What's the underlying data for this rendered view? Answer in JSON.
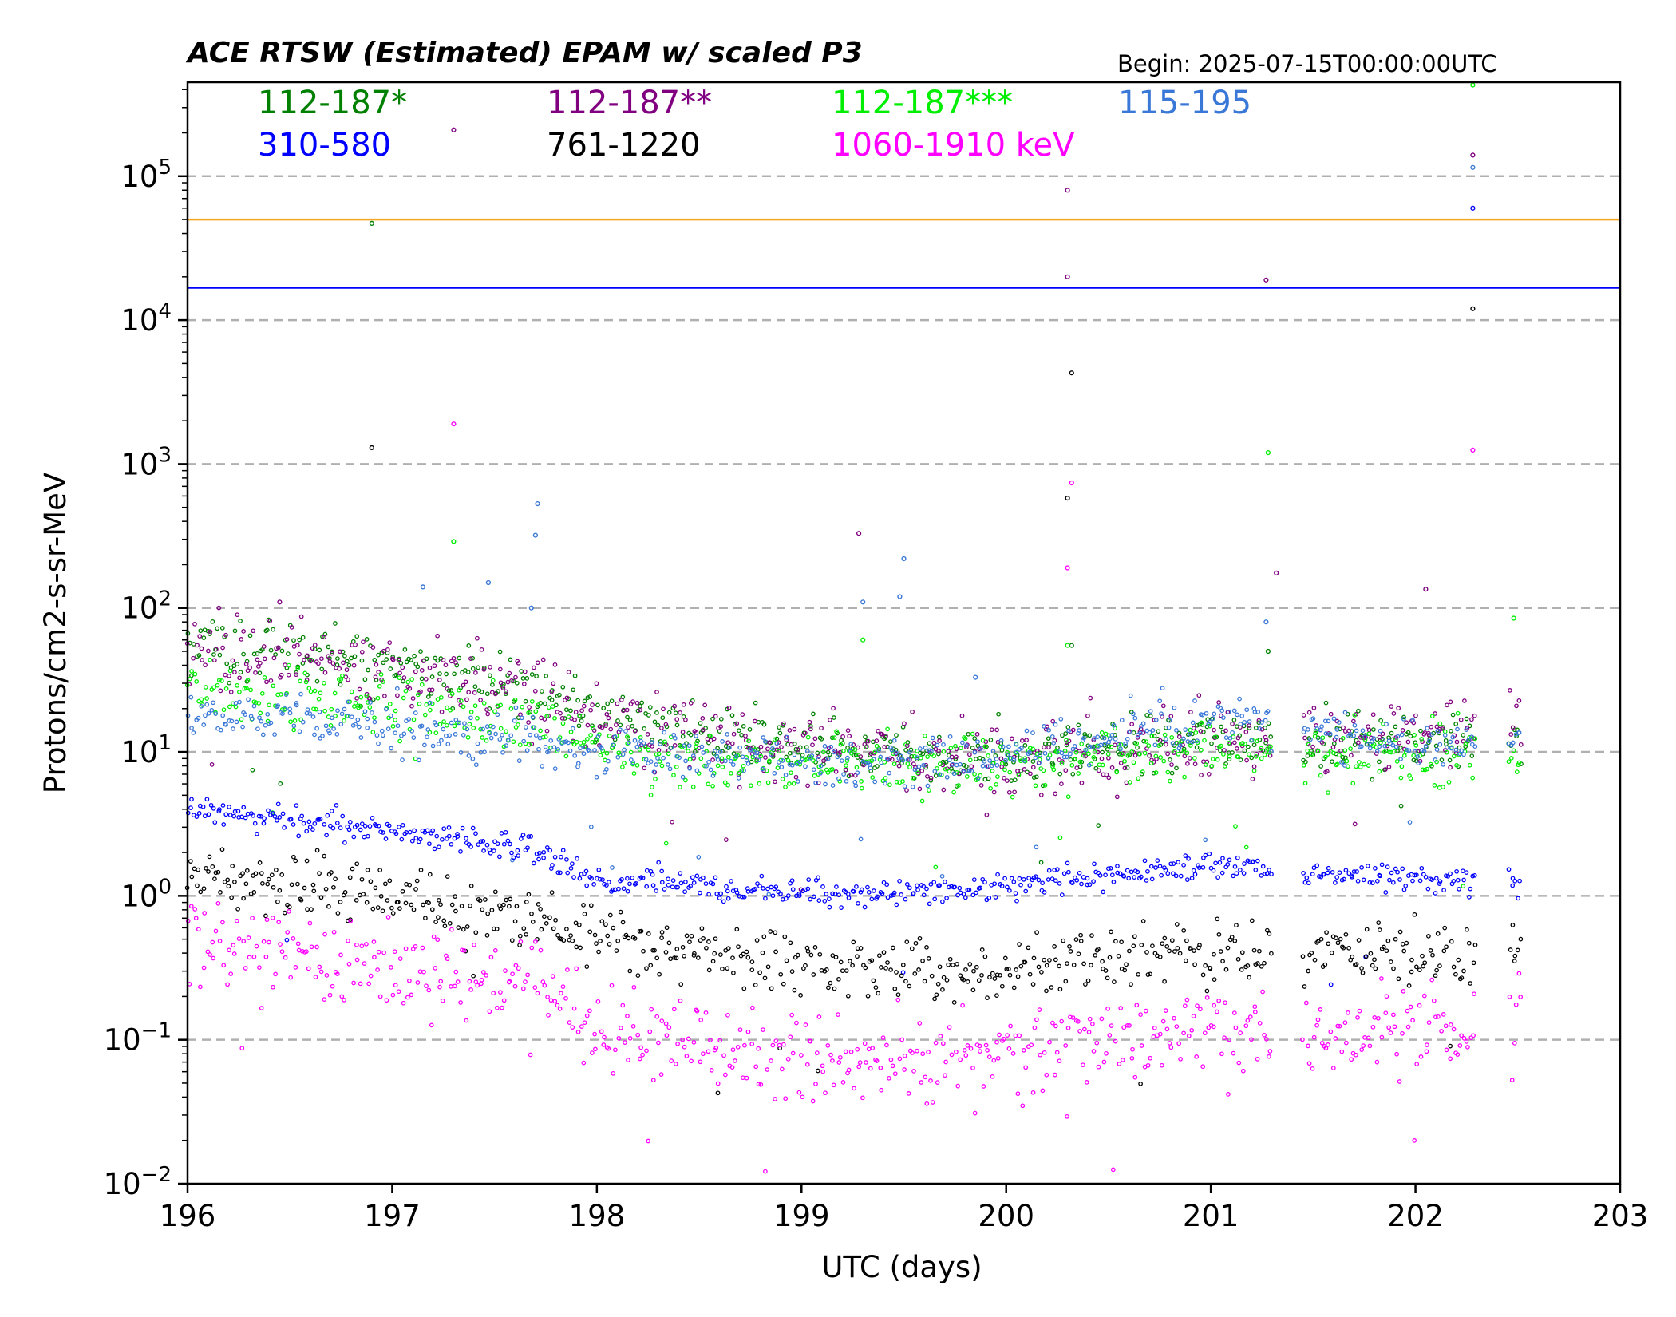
{
  "chart_data": {
    "type": "scatter",
    "title": "ACE RTSW (Estimated) EPAM w/ scaled P3",
    "begin_label": "Begin: 2025-07-15T00:00:00UTC",
    "xlabel": "UTC (days)",
    "ylabel": "Protons/cm2-s-sr-MeV",
    "xlim": [
      196,
      203
    ],
    "ylim": [
      0.01,
      450000
    ],
    "y_scale": "log",
    "grid": "horizontal dashed at decades",
    "x_ticks": [
      "196",
      "197",
      "198",
      "199",
      "200",
      "201",
      "202",
      "203"
    ],
    "y_ticks": [
      {
        "base": "10",
        "exp": "5",
        "value": 100000
      },
      {
        "base": "10",
        "exp": "4",
        "value": 10000
      },
      {
        "base": "10",
        "exp": "3",
        "value": 1000
      },
      {
        "base": "10",
        "exp": "2",
        "value": 100
      },
      {
        "base": "10",
        "exp": "1",
        "value": 10
      },
      {
        "base": "10",
        "exp": "0",
        "value": 1
      },
      {
        "base": "10",
        "exp": "−1",
        "value": 0.1
      },
      {
        "base": "10",
        "exp": "−2",
        "value": 0.01
      }
    ],
    "threshold_lines": [
      {
        "value": 50000,
        "color": "#f5a623"
      },
      {
        "value": 16800,
        "color": "#0000ff"
      }
    ],
    "legend_placement": "top, inside plot, 4 columns",
    "series": [
      {
        "name": "112-187*",
        "color": "#008000",
        "trend": [
          [
            196.0,
            55
          ],
          [
            197.0,
            40
          ],
          [
            197.7,
            28
          ],
          [
            198.0,
            18
          ],
          [
            198.7,
            12
          ],
          [
            199.3,
            10
          ],
          [
            200.0,
            9
          ],
          [
            200.5,
            11
          ],
          [
            201.0,
            13
          ],
          [
            201.3,
            13
          ],
          [
            201.5,
            12
          ],
          [
            202.3,
            12
          ],
          [
            202.5,
            11
          ]
        ],
        "spread": 0.11,
        "spikes": [
          [
            196.9,
            47000
          ],
          [
            200.32,
            55
          ],
          [
            201.28,
            50
          ]
        ]
      },
      {
        "name": "112-187**",
        "color": "#800080",
        "trend": [
          [
            196.0,
            55
          ],
          [
            197.0,
            38
          ],
          [
            197.7,
            27
          ],
          [
            198.0,
            17
          ],
          [
            198.7,
            12
          ],
          [
            199.3,
            10
          ],
          [
            200.0,
            9
          ],
          [
            200.5,
            10
          ],
          [
            201.0,
            12
          ],
          [
            201.3,
            12
          ],
          [
            201.5,
            13
          ],
          [
            202.3,
            14
          ],
          [
            202.5,
            14
          ]
        ],
        "spread": 0.13,
        "spikes": [
          [
            196.45,
            110
          ],
          [
            197.3,
            210000
          ],
          [
            200.3,
            80000
          ],
          [
            200.3,
            20000
          ],
          [
            201.27,
            19000
          ],
          [
            202.28,
            140000
          ],
          [
            199.28,
            330
          ],
          [
            202.05,
            135
          ],
          [
            201.32,
            175
          ]
        ]
      },
      {
        "name": "112-187***",
        "color": "#00ee00",
        "trend": [
          [
            196.0,
            27
          ],
          [
            197.0,
            20
          ],
          [
            197.7,
            15
          ],
          [
            198.0,
            10
          ],
          [
            198.7,
            8
          ],
          [
            199.3,
            8
          ],
          [
            200.0,
            8
          ],
          [
            200.5,
            9
          ],
          [
            201.0,
            11
          ],
          [
            201.3,
            11
          ],
          [
            201.5,
            10
          ],
          [
            202.3,
            10
          ],
          [
            202.5,
            9
          ]
        ],
        "spread": 0.11,
        "spikes": [
          [
            197.3,
            290
          ],
          [
            199.3,
            60
          ],
          [
            201.28,
            1200
          ],
          [
            202.28,
            430000
          ],
          [
            202.48,
            85
          ],
          [
            200.3,
            55
          ]
        ]
      },
      {
        "name": "115-195",
        "color": "#3a78d8",
        "trend": [
          [
            196.0,
            18
          ],
          [
            197.0,
            15
          ],
          [
            197.7,
            12
          ],
          [
            198.0,
            10
          ],
          [
            198.7,
            9
          ],
          [
            199.3,
            8
          ],
          [
            200.0,
            10
          ],
          [
            200.5,
            14
          ],
          [
            201.0,
            15
          ],
          [
            201.3,
            16
          ],
          [
            201.5,
            14
          ],
          [
            202.3,
            11
          ],
          [
            202.5,
            10
          ]
        ],
        "spread": 0.09,
        "spikes": [
          [
            197.71,
            530
          ],
          [
            197.7,
            320
          ],
          [
            197.68,
            100
          ],
          [
            199.5,
            220
          ],
          [
            199.48,
            120
          ],
          [
            199.3,
            110
          ],
          [
            202.28,
            115000
          ],
          [
            201.27,
            80
          ],
          [
            197.15,
            140
          ],
          [
            197.47,
            150
          ],
          [
            199.85,
            33
          ]
        ]
      },
      {
        "name": "310-580",
        "color": "#0000ff",
        "trend": [
          [
            196.0,
            4
          ],
          [
            197.0,
            2.8
          ],
          [
            197.7,
            2.1
          ],
          [
            198.0,
            1.3
          ],
          [
            198.7,
            1.1
          ],
          [
            199.3,
            1.0
          ],
          [
            200.0,
            1.15
          ],
          [
            200.5,
            1.4
          ],
          [
            201.0,
            1.55
          ],
          [
            201.3,
            1.6
          ],
          [
            201.5,
            1.45
          ],
          [
            202.3,
            1.25
          ],
          [
            202.5,
            1.2
          ]
        ],
        "spread": 0.05,
        "spikes": [
          [
            202.28,
            60000
          ]
        ]
      },
      {
        "name": "761-1220",
        "color": "#000000",
        "trend": [
          [
            196.0,
            1.4
          ],
          [
            197.0,
            1.0
          ],
          [
            197.7,
            0.7
          ],
          [
            198.0,
            0.5
          ],
          [
            198.7,
            0.35
          ],
          [
            199.3,
            0.3
          ],
          [
            200.0,
            0.3
          ],
          [
            200.5,
            0.38
          ],
          [
            201.0,
            0.42
          ],
          [
            201.3,
            0.4
          ],
          [
            201.5,
            0.42
          ],
          [
            202.3,
            0.4
          ],
          [
            202.5,
            0.4
          ]
        ],
        "spread": 0.11,
        "spikes": [
          [
            196.9,
            1300
          ],
          [
            200.32,
            4300
          ],
          [
            200.3,
            580
          ],
          [
            202.28,
            12000
          ]
        ]
      },
      {
        "name": "1060-1910 keV",
        "color": "#ff00ff",
        "trend": [
          [
            196.0,
            0.45
          ],
          [
            197.0,
            0.32
          ],
          [
            197.7,
            0.25
          ],
          [
            198.0,
            0.11
          ],
          [
            198.7,
            0.08
          ],
          [
            199.3,
            0.07
          ],
          [
            200.0,
            0.08
          ],
          [
            200.5,
            0.1
          ],
          [
            201.0,
            0.12
          ],
          [
            201.3,
            0.12
          ],
          [
            201.5,
            0.1
          ],
          [
            202.3,
            0.13
          ],
          [
            202.5,
            0.12
          ]
        ],
        "spread": 0.16,
        "spikes": [
          [
            197.3,
            1900
          ],
          [
            200.32,
            740
          ],
          [
            200.3,
            190
          ],
          [
            202.28,
            1250
          ]
        ]
      }
    ],
    "data_gaps": [
      [
        201.3,
        201.45
      ],
      [
        202.3,
        202.45
      ]
    ],
    "data_end": 202.52
  }
}
